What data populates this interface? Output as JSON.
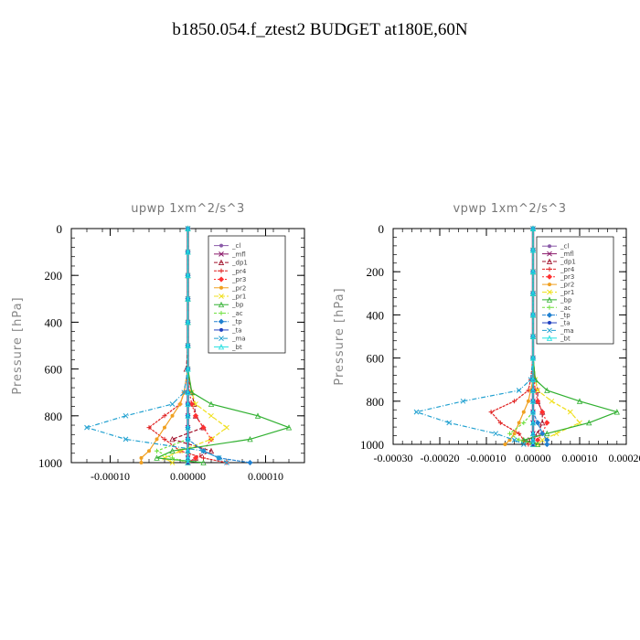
{
  "figure": {
    "title": "b1850.054.f_ztest2  BUDGET at180E,60N"
  },
  "colors": {
    "_cl": "#8a5aa8",
    "_mfl": "#8b1a6b",
    "_dp1": "#a0102a",
    "_pr4": "#e02020",
    "_pr3": "#ff3030",
    "_pr2": "#f0a020",
    "_pr1": "#f0e020",
    "_bp": "#30b030",
    "_ac": "#70e040",
    "_tp": "#2080d0",
    "_ta": "#2040c0",
    "_ma": "#20a0d0",
    "_bt": "#20e0e0"
  },
  "chart_data": [
    {
      "type": "line",
      "title": "upwp   1xm^2/s^3",
      "ylabel": "Pressure [hPa]",
      "xlabel": "",
      "xlim": [
        -0.00015,
        0.00015
      ],
      "ylim": [
        1000,
        0
      ],
      "xticks": [
        -0.0001,
        0.0,
        0.0001
      ],
      "xtick_labels": [
        "-0.00010",
        "0.00000",
        "0.00010"
      ],
      "yticks": [
        0,
        200,
        400,
        600,
        800,
        1000
      ],
      "ytick_labels": [
        "0",
        "200",
        "400",
        "600",
        "800",
        "1000"
      ],
      "legend_position": "top-right",
      "series": [
        {
          "name": "_cl",
          "x": [
            0,
            0,
            0,
            0,
            0,
            0,
            0,
            0,
            0,
            0,
            0,
            0,
            0,
            0,
            0
          ],
          "y": [
            0,
            100,
            200,
            300,
            400,
            500,
            600,
            700,
            750,
            800,
            850,
            900,
            950,
            980,
            1000
          ]
        },
        {
          "name": "_mfl",
          "x": [
            0,
            0,
            0,
            0,
            0,
            0,
            0,
            0,
            0,
            0,
            0,
            0,
            0,
            0,
            0
          ],
          "y": [
            0,
            100,
            200,
            300,
            400,
            500,
            600,
            700,
            750,
            800,
            850,
            900,
            950,
            980,
            1000
          ]
        },
        {
          "name": "_dp1",
          "x": [
            0,
            0,
            0,
            0,
            0,
            0,
            -2e-06,
            5e-06,
            8e-06,
            1e-05,
            2e-05,
            -2e-05,
            3e-05,
            1e-05,
            0
          ],
          "y": [
            0,
            100,
            200,
            300,
            400,
            500,
            600,
            700,
            750,
            800,
            850,
            900,
            950,
            980,
            1000
          ]
        },
        {
          "name": "_pr4",
          "x": [
            0,
            0,
            0,
            0,
            0,
            0,
            0,
            -5e-06,
            -1e-05,
            -3e-05,
            -5e-05,
            -3e-05,
            -1e-05,
            2e-05,
            5e-05
          ],
          "y": [
            0,
            100,
            200,
            300,
            400,
            500,
            600,
            700,
            750,
            800,
            850,
            900,
            950,
            980,
            1000
          ]
        },
        {
          "name": "_pr3",
          "x": [
            0,
            0,
            0,
            0,
            0,
            0,
            0,
            2e-06,
            5e-06,
            1e-05,
            2e-05,
            3e-05,
            2e-05,
            1e-05,
            0
          ],
          "y": [
            0,
            100,
            200,
            300,
            400,
            500,
            600,
            700,
            750,
            800,
            850,
            900,
            950,
            980,
            1000
          ]
        },
        {
          "name": "_pr2",
          "x": [
            0,
            0,
            0,
            0,
            0,
            0,
            0,
            -5e-06,
            -1e-05,
            -2e-05,
            -3e-05,
            -4e-05,
            -5e-05,
            -6e-05,
            -6e-05
          ],
          "y": [
            0,
            100,
            200,
            300,
            400,
            500,
            600,
            700,
            750,
            800,
            850,
            900,
            950,
            980,
            1000
          ]
        },
        {
          "name": "_pr1",
          "x": [
            0,
            0,
            0,
            0,
            0,
            0,
            0,
            5e-06,
            1e-05,
            3e-05,
            5e-05,
            3e-05,
            -1e-05,
            -3e-05,
            -2e-05
          ],
          "y": [
            0,
            100,
            200,
            300,
            400,
            500,
            600,
            700,
            750,
            800,
            850,
            900,
            950,
            980,
            1000
          ]
        },
        {
          "name": "_bp",
          "x": [
            0,
            0,
            0,
            0,
            0,
            0,
            0,
            5e-06,
            3e-05,
            9e-05,
            0.00013,
            8e-05,
            -2e-05,
            -4e-05,
            2e-05
          ],
          "y": [
            0,
            100,
            200,
            300,
            400,
            500,
            600,
            700,
            750,
            800,
            850,
            900,
            950,
            980,
            1000
          ]
        },
        {
          "name": "_ac",
          "x": [
            0,
            0,
            0,
            0,
            0,
            0,
            0,
            0,
            0,
            0,
            0,
            0,
            -4e-05,
            -2e-05,
            0
          ],
          "y": [
            0,
            100,
            200,
            300,
            400,
            500,
            600,
            700,
            750,
            800,
            850,
            900,
            950,
            980,
            1000
          ]
        },
        {
          "name": "_tp",
          "x": [
            0,
            0,
            0,
            0,
            0,
            0,
            0,
            0,
            0,
            0,
            0,
            0,
            2e-05,
            4e-05,
            8e-05
          ],
          "y": [
            0,
            100,
            200,
            300,
            400,
            500,
            600,
            700,
            750,
            800,
            850,
            900,
            950,
            980,
            1000
          ]
        },
        {
          "name": "_ta",
          "x": [
            0,
            0,
            0,
            0,
            0,
            0,
            0,
            0,
            0,
            0,
            0,
            0,
            0,
            0,
            0
          ],
          "y": [
            0,
            100,
            200,
            300,
            400,
            500,
            600,
            700,
            750,
            800,
            850,
            900,
            950,
            980,
            1000
          ]
        },
        {
          "name": "_ma",
          "x": [
            0,
            0,
            0,
            0,
            0,
            0,
            0,
            -5e-06,
            -2e-05,
            -8e-05,
            -0.00013,
            -8e-05,
            2e-05,
            4e-05,
            5e-05
          ],
          "y": [
            0,
            100,
            200,
            300,
            400,
            500,
            600,
            700,
            750,
            800,
            850,
            900,
            950,
            980,
            1000
          ]
        },
        {
          "name": "_bt",
          "x": [
            0,
            0,
            0,
            0,
            0,
            0,
            0,
            0,
            0,
            0,
            0,
            0,
            0,
            0,
            0
          ],
          "y": [
            0,
            100,
            200,
            300,
            400,
            500,
            600,
            700,
            750,
            800,
            850,
            900,
            950,
            980,
            1000
          ]
        }
      ]
    },
    {
      "type": "line",
      "title": "vpwp   1xm^2/s^3",
      "ylabel": "Pressure [hPa]",
      "xlabel": "",
      "xlim": [
        -0.0003,
        0.0002
      ],
      "ylim": [
        1000,
        0
      ],
      "xticks": [
        -0.0003,
        -0.0002,
        -0.0001,
        0.0,
        0.0001,
        0.0002
      ],
      "xtick_labels": [
        "-0.00030",
        "-0.00020",
        "-0.00010",
        "0.00000",
        "0.00010",
        "0.00020"
      ],
      "yticks": [
        0,
        200,
        400,
        600,
        800,
        1000
      ],
      "ytick_labels": [
        "0",
        "200",
        "400",
        "600",
        "800",
        "1000"
      ],
      "legend_position": "top-right",
      "series": [
        {
          "name": "_cl",
          "x": [
            0,
            0,
            0,
            0,
            0,
            0,
            0,
            0,
            0,
            0,
            0,
            0,
            0,
            0,
            0
          ],
          "y": [
            0,
            100,
            200,
            300,
            400,
            500,
            600,
            700,
            750,
            800,
            850,
            900,
            950,
            980,
            1000
          ]
        },
        {
          "name": "_mfl",
          "x": [
            0,
            0,
            0,
            0,
            0,
            0,
            0,
            0,
            0,
            0,
            0,
            0,
            0,
            0,
            0
          ],
          "y": [
            0,
            100,
            200,
            300,
            400,
            500,
            600,
            700,
            750,
            800,
            850,
            900,
            950,
            980,
            1000
          ]
        },
        {
          "name": "_dp1",
          "x": [
            0,
            0,
            0,
            0,
            0,
            0,
            0,
            5e-06,
            1e-05,
            1e-05,
            2e-05,
            2e-05,
            1e-05,
            -1e-05,
            0
          ],
          "y": [
            0,
            100,
            200,
            300,
            400,
            500,
            600,
            700,
            750,
            800,
            850,
            900,
            950,
            980,
            1000
          ]
        },
        {
          "name": "_pr4",
          "x": [
            0,
            0,
            0,
            0,
            0,
            0,
            0,
            -5e-06,
            -1e-05,
            -4e-05,
            -9e-05,
            -7e-05,
            -3e-05,
            -2e-05,
            -1e-05
          ],
          "y": [
            0,
            100,
            200,
            300,
            400,
            500,
            600,
            700,
            750,
            800,
            850,
            900,
            950,
            980,
            1000
          ]
        },
        {
          "name": "_pr3",
          "x": [
            0,
            0,
            0,
            0,
            0,
            0,
            0,
            2e-06,
            5e-06,
            1e-05,
            2e-05,
            3e-05,
            2e-05,
            1e-05,
            0
          ],
          "y": [
            0,
            100,
            200,
            300,
            400,
            500,
            600,
            700,
            750,
            800,
            850,
            900,
            950,
            980,
            1000
          ]
        },
        {
          "name": "_pr2",
          "x": [
            0,
            0,
            0,
            0,
            0,
            0,
            0,
            0,
            -5e-06,
            -1e-05,
            -2e-05,
            -3e-05,
            -4e-05,
            -5e-05,
            -6e-05
          ],
          "y": [
            0,
            100,
            200,
            300,
            400,
            500,
            600,
            700,
            750,
            800,
            850,
            900,
            950,
            980,
            1000
          ]
        },
        {
          "name": "_pr1",
          "x": [
            0,
            0,
            0,
            0,
            0,
            0,
            0,
            5e-06,
            1e-05,
            4e-05,
            8e-05,
            0.0001,
            5e-05,
            2e-05,
            1e-05
          ],
          "y": [
            0,
            100,
            200,
            300,
            400,
            500,
            600,
            700,
            750,
            800,
            850,
            900,
            950,
            980,
            1000
          ]
        },
        {
          "name": "_bp",
          "x": [
            0,
            0,
            0,
            0,
            0,
            0,
            0,
            5e-06,
            3e-05,
            0.0001,
            0.00018,
            0.00012,
            3e-05,
            -2e-05,
            1e-05
          ],
          "y": [
            0,
            100,
            200,
            300,
            400,
            500,
            600,
            700,
            750,
            800,
            850,
            900,
            950,
            980,
            1000
          ]
        },
        {
          "name": "_ac",
          "x": [
            0,
            0,
            0,
            0,
            0,
            0,
            0,
            0,
            0,
            0,
            0,
            -2e-05,
            -5e-05,
            -3e-05,
            0
          ],
          "y": [
            0,
            100,
            200,
            300,
            400,
            500,
            600,
            700,
            750,
            800,
            850,
            900,
            950,
            980,
            1000
          ]
        },
        {
          "name": "_tp",
          "x": [
            0,
            0,
            0,
            0,
            0,
            0,
            0,
            0,
            0,
            0,
            0,
            1e-05,
            2e-05,
            3e-05,
            3e-05
          ],
          "y": [
            0,
            100,
            200,
            300,
            400,
            500,
            600,
            700,
            750,
            800,
            850,
            900,
            950,
            980,
            1000
          ]
        },
        {
          "name": "_ta",
          "x": [
            0,
            0,
            0,
            0,
            0,
            0,
            0,
            0,
            0,
            0,
            0,
            0,
            0,
            0,
            0
          ],
          "y": [
            0,
            100,
            200,
            300,
            400,
            500,
            600,
            700,
            750,
            800,
            850,
            900,
            950,
            980,
            1000
          ]
        },
        {
          "name": "_ma",
          "x": [
            0,
            0,
            0,
            0,
            0,
            0,
            0,
            -5e-06,
            -3e-05,
            -0.00015,
            -0.00025,
            -0.00018,
            -8e-05,
            -4e-05,
            -2e-05
          ],
          "y": [
            0,
            100,
            200,
            300,
            400,
            500,
            600,
            700,
            750,
            800,
            850,
            900,
            950,
            980,
            1000
          ]
        },
        {
          "name": "_bt",
          "x": [
            0,
            0,
            0,
            0,
            0,
            0,
            0,
            0,
            0,
            0,
            0,
            0,
            0,
            0,
            0
          ],
          "y": [
            0,
            100,
            200,
            300,
            400,
            500,
            600,
            700,
            750,
            800,
            850,
            900,
            950,
            980,
            1000
          ]
        }
      ]
    }
  ]
}
